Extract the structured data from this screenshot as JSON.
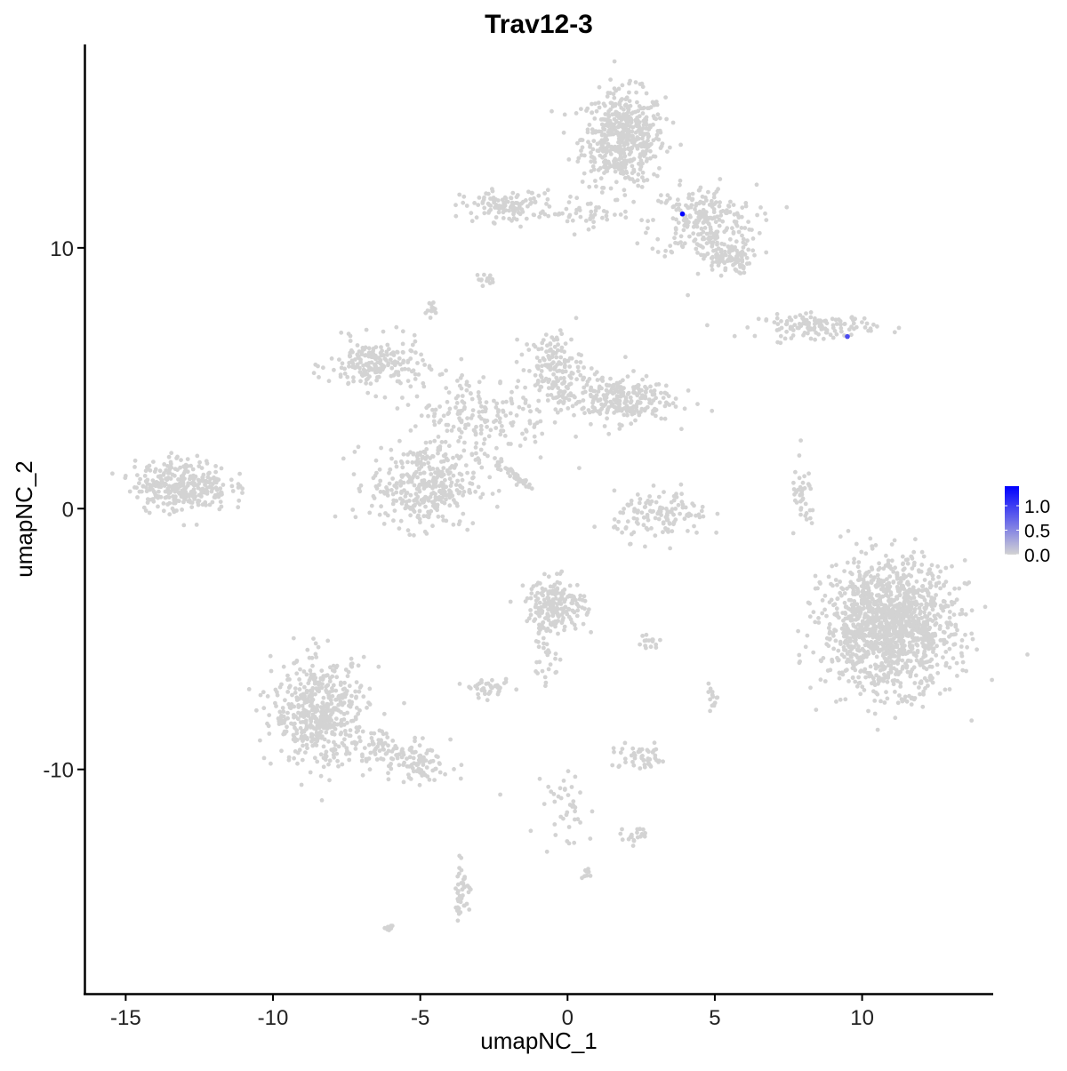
{
  "chart_data": {
    "type": "scatter",
    "title": "Trav12-3",
    "xlabel": "umapNC_1",
    "ylabel": "umapNC_2",
    "xlim": [
      -16.4,
      14.45
    ],
    "ylim": [
      -18.6,
      17.8
    ],
    "xticks": [
      -15,
      -10,
      -5,
      0,
      5,
      10
    ],
    "yticks": [
      -10,
      0,
      10
    ],
    "grid": false,
    "color_scale": {
      "low": "#d3d3d3",
      "high": "#0000ff",
      "min": 0,
      "max": 1.4,
      "ticks": [
        0.0,
        0.5,
        1.0
      ],
      "tick_labels": [
        "0.0",
        "0.5",
        "1.0"
      ]
    },
    "legend_position": "right",
    "background_value": 0,
    "clusters": [
      {
        "cx": 1.9,
        "cy": 14.2,
        "sx": 0.7,
        "sy": 0.9,
        "n": 520
      },
      {
        "cx": 4.6,
        "cy": 11.0,
        "sx": 0.9,
        "sy": 0.7,
        "n": 240
      },
      {
        "cx": 5.4,
        "cy": 9.6,
        "sx": 0.4,
        "sy": 0.3,
        "n": 100
      },
      {
        "cx": -2.0,
        "cy": 11.6,
        "sx": 0.8,
        "sy": 0.3,
        "n": 120
      },
      {
        "cx": 0.6,
        "cy": 11.3,
        "sx": 0.8,
        "sy": 0.25,
        "n": 40
      },
      {
        "cx": -2.8,
        "cy": 8.8,
        "sx": 0.15,
        "sy": 0.1,
        "n": 15
      },
      {
        "cx": -4.55,
        "cy": 7.6,
        "sx": 0.12,
        "sy": 0.2,
        "n": 15
      },
      {
        "cx": 8.5,
        "cy": 7.0,
        "sx": 1.0,
        "sy": 0.22,
        "n": 130
      },
      {
        "cx": -6.5,
        "cy": 5.5,
        "sx": 0.8,
        "sy": 0.5,
        "n": 200
      },
      {
        "cx": -4.9,
        "cy": 0.9,
        "sx": 0.9,
        "sy": 0.8,
        "n": 350
      },
      {
        "cx": -3.0,
        "cy": 3.5,
        "sx": 1.2,
        "sy": 0.9,
        "n": 200
      },
      {
        "cx": -0.5,
        "cy": 5.4,
        "sx": 0.5,
        "sy": 0.7,
        "n": 150
      },
      {
        "cx": 1.6,
        "cy": 4.2,
        "sx": 1.0,
        "sy": 0.45,
        "n": 260
      },
      {
        "cx": -13.1,
        "cy": 0.9,
        "sx": 0.8,
        "sy": 0.5,
        "n": 320
      },
      {
        "cx": -1.8,
        "cy": 1.3,
        "sx": 0.5,
        "sy": 0.08,
        "n": 40,
        "angle": -0.7
      },
      {
        "cx": 3.2,
        "cy": -0.3,
        "sx": 0.8,
        "sy": 0.45,
        "n": 130
      },
      {
        "cx": 8.0,
        "cy": 0.3,
        "sx": 0.2,
        "sy": 0.7,
        "n": 40
      },
      {
        "cx": 10.9,
        "cy": -4.5,
        "sx": 1.1,
        "sy": 1.2,
        "n": 1400
      },
      {
        "cx": -8.4,
        "cy": -7.8,
        "sx": 0.8,
        "sy": 1.0,
        "n": 500
      },
      {
        "cx": -5.6,
        "cy": -9.6,
        "sx": 1.0,
        "sy": 0.4,
        "n": 150,
        "angle": -0.4
      },
      {
        "cx": -0.4,
        "cy": -3.7,
        "sx": 0.5,
        "sy": 0.5,
        "n": 200
      },
      {
        "cx": -0.8,
        "cy": -5.6,
        "sx": 0.3,
        "sy": 0.6,
        "n": 30
      },
      {
        "cx": -2.6,
        "cy": -6.9,
        "sx": 0.35,
        "sy": 0.15,
        "n": 40
      },
      {
        "cx": 2.5,
        "cy": -9.6,
        "sx": 0.5,
        "sy": 0.25,
        "n": 50
      },
      {
        "cx": -3.6,
        "cy": -14.6,
        "sx": 0.15,
        "sy": 0.5,
        "n": 40
      },
      {
        "cx": 0.0,
        "cy": -11.5,
        "sx": 0.4,
        "sy": 0.9,
        "n": 40
      },
      {
        "cx": -6.1,
        "cy": -16.1,
        "sx": 0.08,
        "sy": 0.06,
        "n": 8
      },
      {
        "cx": 0.6,
        "cy": -14.0,
        "sx": 0.08,
        "sy": 0.08,
        "n": 8
      },
      {
        "cx": 2.2,
        "cy": -12.5,
        "sx": 0.4,
        "sy": 0.15,
        "n": 20
      },
      {
        "cx": 4.9,
        "cy": -7.3,
        "sx": 0.1,
        "sy": 0.25,
        "n": 15
      },
      {
        "cx": 2.8,
        "cy": -5.1,
        "sx": 0.25,
        "sy": 0.15,
        "n": 15
      }
    ],
    "expressing_points": [
      {
        "x": 9.5,
        "y": 6.6,
        "value": 0.9
      },
      {
        "x": 3.9,
        "y": 11.3,
        "value": 1.4
      }
    ]
  }
}
